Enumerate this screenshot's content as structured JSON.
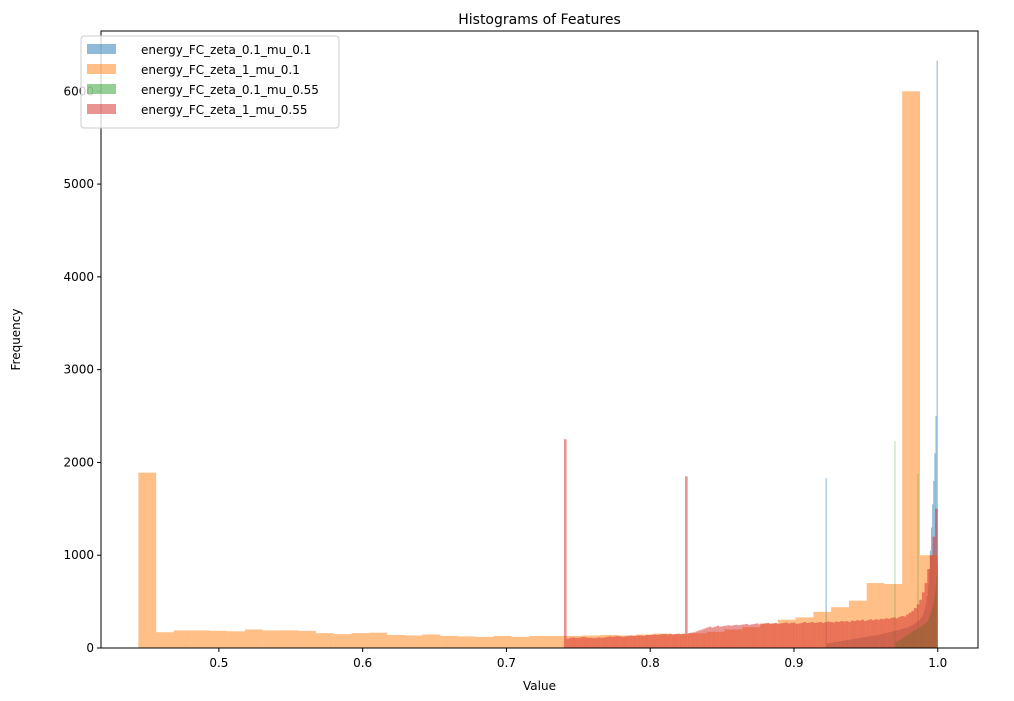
{
  "chart_data": {
    "type": "histogram",
    "title": "Histograms of Features",
    "xlabel": "Value",
    "ylabel": "Frequency",
    "xlim": [
      0.418,
      1.028
    ],
    "ylim": [
      0,
      6650
    ],
    "xticks": [
      0.5,
      0.6,
      0.7,
      0.8,
      0.9,
      1.0
    ],
    "xtick_labels": [
      "0.5",
      "0.6",
      "0.7",
      "0.8",
      "0.9",
      "1.0"
    ],
    "yticks": [
      0,
      1000,
      2000,
      3000,
      4000,
      5000,
      6000
    ],
    "ytick_labels": [
      "0",
      "1000",
      "2000",
      "3000",
      "4000",
      "5000",
      "6000"
    ],
    "grid": false,
    "legend_position": "top-left",
    "series": [
      {
        "name": "energy_FC_zeta_0.1_mu_0.1",
        "color": "#1f77b4",
        "opacity": 0.5,
        "bin_range": [
          0.922,
          1.0
        ],
        "counts": [
          1830,
          50,
          52,
          54,
          56,
          58,
          60,
          62,
          64,
          66,
          68,
          70,
          72,
          74,
          76,
          78,
          80,
          82,
          84,
          86,
          88,
          90,
          92,
          94,
          96,
          98,
          100,
          102,
          104,
          106,
          108,
          110,
          112,
          114,
          116,
          118,
          120,
          122,
          124,
          126,
          128,
          130,
          132,
          134,
          136,
          138,
          140,
          142,
          145,
          148,
          151,
          154,
          157,
          160,
          163,
          166,
          169,
          172,
          175,
          178,
          181,
          184,
          187,
          190,
          193,
          196,
          199,
          202,
          205,
          208,
          212,
          216,
          220,
          225,
          230,
          236,
          242,
          248,
          255,
          262,
          270,
          280,
          290,
          300,
          315,
          330,
          350,
          380,
          420,
          480,
          560,
          680,
          850,
          1050,
          1300,
          1550,
          1800,
          2100,
          2500,
          6330
        ]
      },
      {
        "name": "energy_FC_zeta_1_mu_0.1",
        "color": "#ff7f0e",
        "opacity": 0.5,
        "bin_range": [
          0.444,
          1.0
        ],
        "counts": [
          1890,
          170,
          190,
          190,
          185,
          180,
          200,
          190,
          190,
          185,
          160,
          150,
          160,
          165,
          140,
          135,
          145,
          130,
          125,
          120,
          130,
          120,
          130,
          130,
          130,
          135,
          140,
          135,
          145,
          155,
          150,
          160,
          175,
          200,
          225,
          265,
          305,
          330,
          390,
          440,
          510,
          700,
          690,
          6000,
          1000
        ]
      },
      {
        "name": "energy_FC_zeta_0.1_mu_0.55",
        "color": "#2ca02c",
        "opacity": 0.5,
        "bin_range": [
          0.97,
          1.0
        ],
        "counts": [
          2230,
          60,
          65,
          70,
          75,
          80,
          85,
          90,
          95,
          100,
          105,
          110,
          115,
          120,
          125,
          130,
          135,
          140,
          145,
          150,
          155,
          160,
          165,
          170,
          175,
          180,
          185,
          190,
          195,
          200,
          205,
          210,
          1880,
          215,
          220,
          225,
          230,
          235,
          240,
          245,
          250,
          255,
          260,
          270,
          280,
          290,
          300,
          320,
          340,
          360,
          380,
          400,
          430,
          460,
          500,
          550,
          600,
          680,
          780,
          900
        ]
      },
      {
        "name": "energy_FC_zeta_1_mu_0.55",
        "color": "#d62728",
        "opacity": 0.5,
        "bin_range": [
          0.74,
          1.0
        ],
        "counts": [
          2250,
          100,
          110,
          115,
          110,
          110,
          115,
          120,
          115,
          110,
          110,
          105,
          110,
          115,
          110,
          115,
          120,
          125,
          120,
          125,
          130,
          125,
          120,
          125,
          130,
          135,
          130,
          130,
          135,
          135,
          130,
          140,
          140,
          145,
          145,
          140,
          145,
          150,
          150,
          145,
          150,
          145,
          150,
          155,
          150,
          155,
          1850,
          160,
          165,
          170,
          180,
          190,
          200,
          210,
          220,
          230,
          220,
          230,
          240,
          230,
          235,
          240,
          245,
          240,
          245,
          250,
          245,
          250,
          255,
          260,
          250,
          255,
          260,
          265,
          255,
          260,
          265,
          270,
          260,
          265,
          270,
          260,
          265,
          270,
          275,
          265,
          270,
          275,
          260,
          265,
          270,
          280,
          270,
          275,
          280,
          270,
          275,
          280,
          270,
          280,
          285,
          280,
          275,
          285,
          280,
          290,
          285,
          290,
          280,
          295,
          290,
          300,
          295,
          305,
          290,
          300,
          310,
          300,
          310,
          305,
          315,
          310,
          320,
          315,
          325,
          330,
          320,
          335,
          345,
          340,
          360,
          380,
          400,
          430,
          470,
          520,
          600,
          700,
          850,
          1000,
          1200,
          1500
        ]
      }
    ]
  }
}
